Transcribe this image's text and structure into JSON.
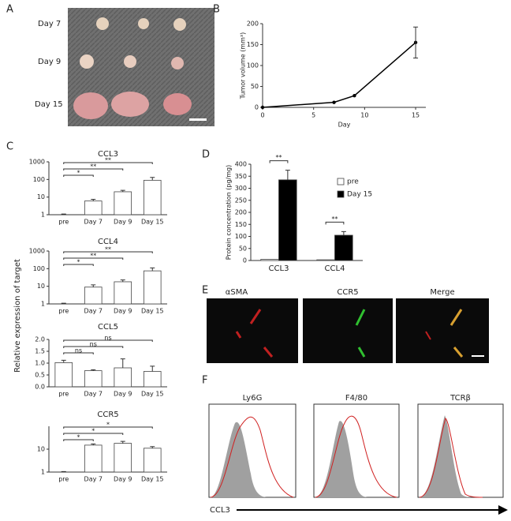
{
  "panel_a": {
    "label": "A",
    "rows": [
      "Day 7",
      "Day 9",
      "Day 15"
    ]
  },
  "panel_c": {
    "label": "C",
    "ylabel": "Relative expression of target"
  },
  "panel_e": {
    "label": "E",
    "images": [
      "αSMA",
      "CCR5",
      "Merge"
    ]
  },
  "panel_f": {
    "label": "F",
    "plots": [
      "Ly6G",
      "F4/80",
      "TCRβ"
    ],
    "xlabel": "CCL3"
  },
  "chart_data": [
    {
      "type": "line",
      "panel_label": "B",
      "x": [
        0,
        7,
        9,
        15
      ],
      "y": [
        0,
        12,
        28,
        155
      ],
      "errors": [
        null,
        null,
        null,
        37
      ],
      "xlabel": "Day",
      "ylabel": "Tumor volume (mm³)",
      "xlim": [
        0,
        16
      ],
      "xticks": [
        0,
        5,
        10,
        15
      ],
      "ylim": [
        0,
        200
      ],
      "yticks": [
        0,
        50,
        100,
        150,
        200
      ],
      "color": "#000000"
    },
    {
      "type": "bar",
      "title": "CCL3",
      "categories": [
        "pre",
        "Day 7",
        "Day 9",
        "Day 15"
      ],
      "values": [
        1,
        6,
        20,
        90
      ],
      "errors": [
        0.1,
        1.5,
        4,
        40
      ],
      "ylog": true,
      "ylim": [
        1,
        1000
      ],
      "yticks": [
        1,
        10,
        100,
        1000
      ],
      "color": "#ffffff",
      "annotations": [
        {
          "text": "*",
          "from": "pre",
          "to": "Day 7"
        },
        {
          "text": "**",
          "from": "pre",
          "to": "Day 9"
        },
        {
          "text": "**",
          "from": "pre",
          "to": "Day 15"
        }
      ]
    },
    {
      "type": "bar",
      "title": "CCL4",
      "categories": [
        "pre",
        "Day 7",
        "Day 9",
        "Day 15"
      ],
      "values": [
        1,
        9,
        18,
        75
      ],
      "errors": [
        0.1,
        3,
        5,
        35
      ],
      "ylog": true,
      "ylim": [
        1,
        1000
      ],
      "yticks": [
        1,
        10,
        100,
        1000
      ],
      "color": "#ffffff",
      "annotations": [
        {
          "text": "*",
          "from": "pre",
          "to": "Day 7"
        },
        {
          "text": "**",
          "from": "pre",
          "to": "Day 9"
        },
        {
          "text": "**",
          "from": "pre",
          "to": "Day 15"
        }
      ]
    },
    {
      "type": "bar",
      "title": "CCL5",
      "categories": [
        "pre",
        "Day 7",
        "Day 9",
        "Day 15"
      ],
      "values": [
        1.02,
        0.68,
        0.8,
        0.65
      ],
      "errors": [
        0.1,
        0.04,
        0.38,
        0.22
      ],
      "ylog": false,
      "ylim": [
        0,
        2
      ],
      "yticks": [
        {
          "value": 0,
          "label": "0.0"
        },
        0.5,
        {
          "value": 1,
          "label": "1.0"
        },
        1.5,
        {
          "value": 2,
          "label": "2.0"
        }
      ],
      "color": "#ffffff",
      "annotations": [
        {
          "text": "ns",
          "from": "pre",
          "to": "Day 7"
        },
        {
          "text": "ns",
          "from": "pre",
          "to": "Day 9"
        },
        {
          "text": "ns",
          "from": "pre",
          "to": "Day 15"
        }
      ]
    },
    {
      "type": "bar",
      "title": "CCR5",
      "categories": [
        "pre",
        "Day 7",
        "Day 9",
        "Day 15"
      ],
      "values": [
        1,
        15,
        18,
        11
      ],
      "errors": [
        0.05,
        2,
        4,
        2
      ],
      "ylog": true,
      "ylim": [
        1,
        100
      ],
      "yticks": [
        1,
        10
      ],
      "color": "#ffffff",
      "annotations": [
        {
          "text": "*",
          "from": "pre",
          "to": "Day 7"
        },
        {
          "text": "*",
          "from": "pre",
          "to": "Day 9"
        },
        {
          "text": "*",
          "from": "pre",
          "to": "Day 15"
        }
      ]
    },
    {
      "type": "bar",
      "panel_label": "D",
      "categories": [
        "CCL3",
        "CCL4"
      ],
      "ylabel": "Protein concentration (pg/mg)",
      "series": [
        {
          "name": "pre",
          "color": "#ffffff",
          "values": [
            5,
            3
          ],
          "errors": [
            null,
            null
          ]
        },
        {
          "name": "Day 15",
          "color": "#000000",
          "values": [
            335,
            105
          ],
          "errors": [
            40,
            15
          ]
        }
      ],
      "ylog": false,
      "ylim": [
        0,
        400
      ],
      "yticks": [
        0,
        50,
        100,
        150,
        200,
        250,
        300,
        350,
        400
      ],
      "annotations": [
        {
          "text": "**",
          "category": "CCL3"
        },
        {
          "text": "**",
          "category": "CCL4"
        }
      ]
    }
  ]
}
